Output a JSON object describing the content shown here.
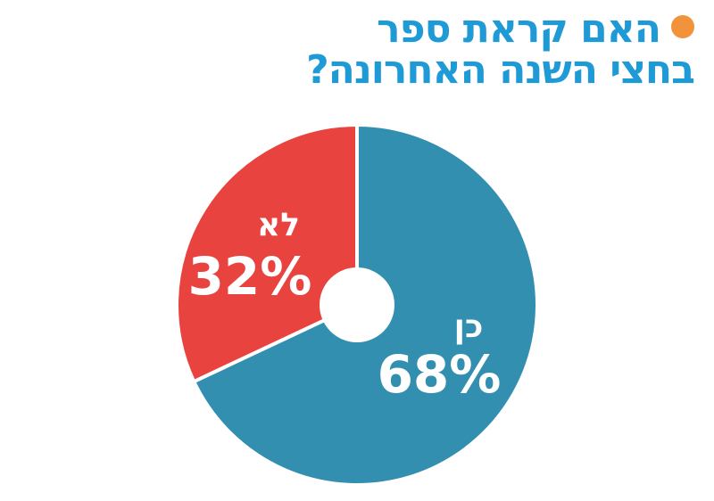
{
  "title": {
    "line1": "האם קראת ספר",
    "line2": "בחצי השנה האחרונה?",
    "bullet_color": "#F2923A",
    "text_color": "#1E9BD7"
  },
  "chart_data": {
    "type": "pie",
    "donut": true,
    "categories": [
      "כן",
      "לא"
    ],
    "values": [
      68,
      32
    ],
    "labels": [
      "68%",
      "32%"
    ],
    "colors": [
      "#338FAF",
      "#E8433F"
    ],
    "legend": "none"
  }
}
